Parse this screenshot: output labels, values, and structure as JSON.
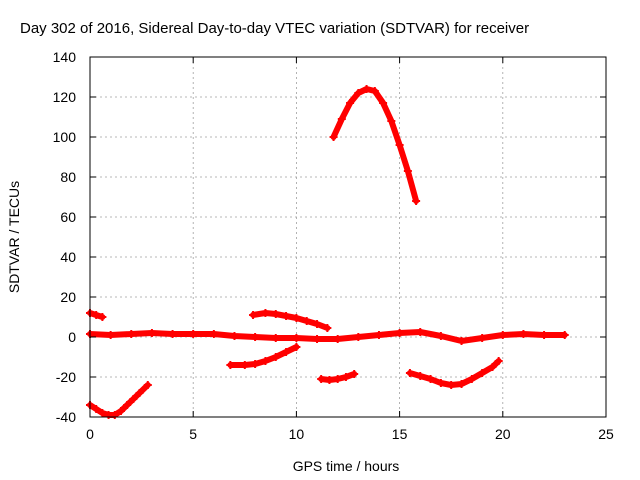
{
  "chart_data": {
    "type": "line",
    "title": "Day 302 of 2016, Sidereal Day-to-day VTEC variation (SDTVAR) for receiver",
    "xlabel": "GPS time / hours",
    "ylabel": "SDTVAR / TECUs",
    "xlim": [
      0,
      25
    ],
    "ylim": [
      -40,
      140
    ],
    "xticks": [
      0,
      5,
      10,
      15,
      20,
      25
    ],
    "yticks": [
      -40,
      -20,
      0,
      20,
      40,
      60,
      80,
      100,
      120,
      140
    ],
    "grid": true,
    "series_color": "#ff0000",
    "series": [
      {
        "x": [
          0.0,
          0.3,
          0.6
        ],
        "y": [
          12,
          11,
          10
        ]
      },
      {
        "x": [
          0.0,
          0.3,
          0.6,
          0.9,
          1.2,
          1.5,
          1.8,
          2.1,
          2.4,
          2.8
        ],
        "y": [
          -34,
          -36,
          -38,
          -39,
          -39,
          -37,
          -34,
          -31,
          -28,
          -24
        ]
      },
      {
        "x": [
          0.0,
          1.0,
          2.0,
          3.0,
          4.0,
          5.0,
          6.0,
          7.0,
          8.0,
          9.0,
          10.0,
          11.0,
          12.0,
          13.0,
          14.0,
          15.0,
          16.0,
          17.0,
          18.0,
          19.0,
          20.0,
          21.0,
          22.0,
          23.0
        ],
        "y": [
          1.5,
          1,
          1.5,
          2,
          1.5,
          1.5,
          1.5,
          0.5,
          0,
          -0.5,
          -0.5,
          -1,
          -1,
          0,
          1,
          2,
          2.5,
          0.5,
          -2,
          -0.5,
          1,
          1.5,
          1,
          1
        ]
      },
      {
        "x": [
          7.9,
          8.5,
          9.0,
          9.5,
          10.0,
          10.5,
          11.0,
          11.5
        ],
        "y": [
          11,
          12,
          11.5,
          10.5,
          9.5,
          8,
          6.5,
          4.5
        ]
      },
      {
        "x": [
          6.8,
          7.5,
          8.0,
          8.5,
          9.0,
          9.5,
          10.0
        ],
        "y": [
          -14,
          -14,
          -13.5,
          -12,
          -10,
          -7.5,
          -5
        ]
      },
      {
        "x": [
          11.2,
          11.6,
          12.0,
          12.4,
          12.8
        ],
        "y": [
          -21,
          -21.5,
          -21,
          -20,
          -18.5
        ]
      },
      {
        "x": [
          11.8,
          12.2,
          12.6,
          13.0,
          13.4,
          13.8,
          14.2,
          14.6,
          15.0,
          15.4,
          15.8
        ],
        "y": [
          100,
          109,
          117,
          122,
          124,
          123,
          117,
          108,
          96,
          83,
          68
        ]
      },
      {
        "x": [
          15.5,
          16.0,
          16.5,
          17.0,
          17.5,
          18.0,
          18.5,
          19.0,
          19.5,
          19.8
        ],
        "y": [
          -18,
          -19.5,
          -21,
          -23,
          -24,
          -23.5,
          -21,
          -18,
          -15,
          -12
        ]
      }
    ]
  }
}
